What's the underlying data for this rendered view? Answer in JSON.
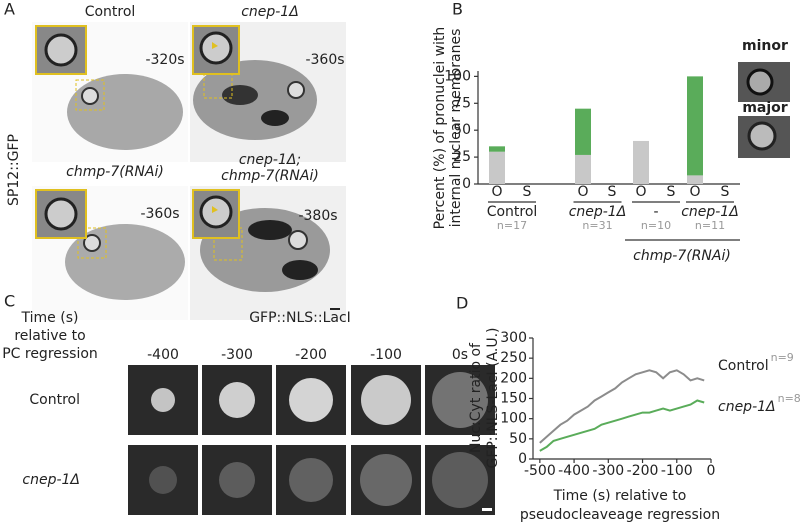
{
  "panel_a": {
    "panel_label": "A",
    "stain": "SP12::GFP",
    "conditions": [
      {
        "name": "Control",
        "time": "-320s"
      },
      {
        "name": "cnep-1Δ",
        "time": "-360s"
      },
      {
        "name": "chmp-7(RNAi)",
        "time": "-360s"
      },
      {
        "name": [
          "cnep-1Δ;",
          "chmp-7(RNAi)"
        ],
        "time": "-380s"
      }
    ]
  },
  "panel_c": {
    "panel_label": "C",
    "time_caption": [
      "Time (s)",
      "relative to",
      "PC regression"
    ],
    "marker": "GFP::NLS::LacI",
    "times": [
      "-400",
      "-300",
      "-200",
      "-100",
      "0s"
    ],
    "rows": [
      "Control",
      "cnep-1Δ"
    ]
  },
  "chart_data": [
    {
      "type": "bar",
      "panel_label": "B",
      "stacked": true,
      "categories": [
        "O",
        "S",
        "O",
        "S",
        "O",
        "S",
        "O",
        "S"
      ],
      "series": [
        {
          "name": "minor",
          "color": "#c8c8c8",
          "values": [
            30,
            0,
            27,
            0,
            40,
            0,
            8,
            0
          ]
        },
        {
          "name": "major",
          "color": "#5aac5a",
          "values": [
            5,
            0,
            43,
            0,
            0,
            0,
            92,
            0
          ]
        }
      ],
      "ylim": [
        0,
        105
      ],
      "yticks": [
        0,
        25,
        50,
        75,
        100
      ],
      "ylabel": [
        "Percent (%) of pronuclei with",
        "internal nuclear membranes"
      ],
      "groups": [
        {
          "label": "Control",
          "n": "n=17"
        },
        {
          "label": "cnep-1Δ",
          "n": "n=31"
        },
        {
          "label": "-",
          "n": "n=10"
        },
        {
          "label": "cnep-1Δ",
          "n": "n=11"
        }
      ],
      "group_caption": "chmp-7(RNAi)"
    },
    {
      "type": "line",
      "panel_label": "D",
      "x": [
        -500,
        -480,
        -460,
        -440,
        -420,
        -400,
        -380,
        -360,
        -340,
        -320,
        -300,
        -280,
        -260,
        -240,
        -220,
        -200,
        -180,
        -160,
        -140,
        -120,
        -100,
        -80,
        -60,
        -40,
        -20
      ],
      "series": [
        {
          "name": "Control",
          "n_label": "n=9",
          "color": "#8c8c8c",
          "values": [
            40,
            55,
            70,
            85,
            95,
            110,
            120,
            130,
            145,
            155,
            165,
            175,
            190,
            200,
            210,
            215,
            220,
            215,
            200,
            215,
            220,
            210,
            195,
            200,
            195
          ]
        },
        {
          "name": "cnep-1Δ",
          "n_label": "n=8",
          "color": "#5aac5a",
          "values": [
            20,
            30,
            45,
            50,
            55,
            60,
            65,
            70,
            75,
            85,
            90,
            95,
            100,
            105,
            110,
            115,
            115,
            120,
            125,
            120,
            125,
            130,
            135,
            145,
            140
          ]
        }
      ],
      "xlim": [
        -520,
        0
      ],
      "xticks": [
        -500,
        -400,
        -300,
        -200,
        -100,
        0
      ],
      "ylim": [
        0,
        300
      ],
      "yticks": [
        0,
        50,
        100,
        150,
        200,
        250,
        300
      ],
      "xlabel": [
        "Time (s) relative to",
        "pseudocleaveage regression"
      ],
      "ylabel": [
        "Nuc:Cyt ratio of",
        "GFP::NLS-LacI (A.U.)"
      ]
    }
  ]
}
